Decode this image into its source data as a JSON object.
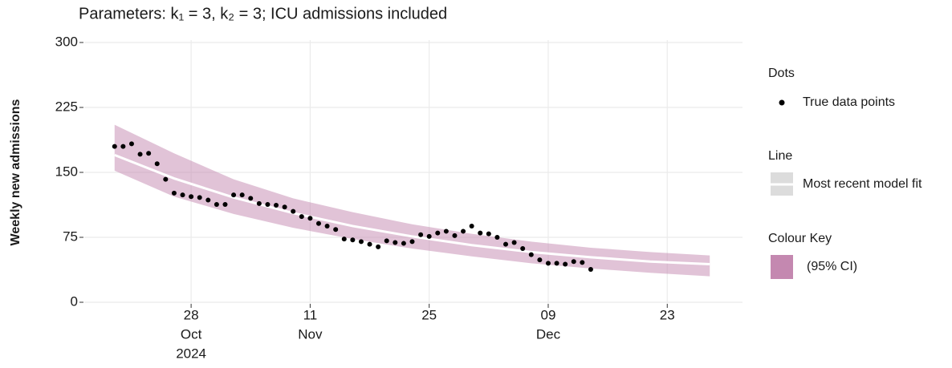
{
  "chart_data": {
    "type": "line",
    "title": "Parameters: k₁ = 3, k₂ = 3; ICU admissions included",
    "y_label": "Weekly new admissions",
    "xlim": [
      "2024-10-16",
      "2024-12-31"
    ],
    "xticks": [
      {
        "value": "2024-10-28",
        "label": [
          "28",
          "Oct",
          "2024"
        ]
      },
      {
        "value": "2024-11-11",
        "label": [
          "11",
          "Nov"
        ]
      },
      {
        "value": "2024-11-25",
        "label": [
          "25"
        ]
      },
      {
        "value": "2024-12-09",
        "label": [
          "09",
          "Dec"
        ]
      },
      {
        "value": "2024-12-23",
        "label": [
          "23"
        ]
      }
    ],
    "ylim": [
      0,
      300
    ],
    "yticks": [
      0,
      75,
      150,
      225,
      300
    ],
    "grid": true,
    "series": [
      {
        "type": "band",
        "legend_title": "Colour Key",
        "name": "(95% CI)",
        "color": "#c488b0",
        "x": [
          "2024-10-19",
          "2024-10-26",
          "2024-11-02",
          "2024-11-09",
          "2024-11-16",
          "2024-11-23",
          "2024-11-30",
          "2024-12-07",
          "2024-12-14",
          "2024-12-21",
          "2024-12-28"
        ],
        "lower": [
          152,
          122,
          102,
          86,
          73,
          62,
          53,
          45,
          39,
          34,
          30
        ],
        "upper": [
          205,
          172,
          142,
          120,
          104,
          90,
          79,
          70,
          63,
          58,
          54
        ]
      },
      {
        "type": "line",
        "legend_title": "Line",
        "name": "Most recent model fit",
        "color": "#ffffff",
        "x": [
          "2024-10-19",
          "2024-10-26",
          "2024-11-02",
          "2024-11-09",
          "2024-11-16",
          "2024-11-23",
          "2024-11-30",
          "2024-12-07",
          "2024-12-14",
          "2024-12-21",
          "2024-12-28"
        ],
        "values": [
          170,
          143,
          121,
          103,
          88,
          76,
          66,
          58,
          52,
          47,
          44
        ]
      },
      {
        "type": "scatter",
        "legend_title": "Dots",
        "name": "True data points",
        "color": "#000000",
        "x": [
          "2024-10-19",
          "2024-10-20",
          "2024-10-21",
          "2024-10-22",
          "2024-10-23",
          "2024-10-24",
          "2024-10-25",
          "2024-10-26",
          "2024-10-27",
          "2024-10-28",
          "2024-10-29",
          "2024-10-30",
          "2024-10-31",
          "2024-11-01",
          "2024-11-02",
          "2024-11-03",
          "2024-11-04",
          "2024-11-05",
          "2024-11-06",
          "2024-11-07",
          "2024-11-08",
          "2024-11-09",
          "2024-11-10",
          "2024-11-11",
          "2024-11-12",
          "2024-11-13",
          "2024-11-14",
          "2024-11-15",
          "2024-11-16",
          "2024-11-17",
          "2024-11-18",
          "2024-11-19",
          "2024-11-20",
          "2024-11-21",
          "2024-11-22",
          "2024-11-23",
          "2024-11-24",
          "2024-11-25",
          "2024-11-26",
          "2024-11-27",
          "2024-11-28",
          "2024-11-29",
          "2024-11-30",
          "2024-12-01",
          "2024-12-02",
          "2024-12-03",
          "2024-12-04",
          "2024-12-05",
          "2024-12-06",
          "2024-12-07",
          "2024-12-08",
          "2024-12-09",
          "2024-12-10",
          "2024-12-11",
          "2024-12-12",
          "2024-12-13",
          "2024-12-14"
        ],
        "values": [
          180,
          180,
          183,
          171,
          172,
          160,
          142,
          126,
          124,
          122,
          121,
          118,
          113,
          113,
          124,
          124,
          120,
          114,
          113,
          112,
          110,
          105,
          99,
          97,
          91,
          88,
          84,
          73,
          72,
          70,
          67,
          64,
          71,
          69,
          68,
          70,
          78,
          76,
          80,
          82,
          77,
          82,
          88,
          80,
          79,
          75,
          67,
          69,
          62,
          55,
          49,
          45,
          45,
          44,
          47,
          46,
          38
        ]
      }
    ]
  }
}
